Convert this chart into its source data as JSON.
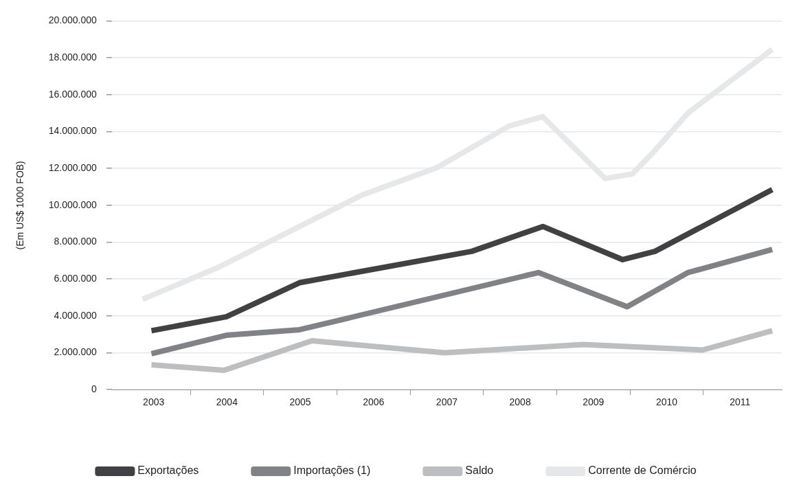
{
  "chart_data": {
    "type": "line",
    "ylabel": "(Em US$ 1000 FOB)",
    "xlim": [
      2002.43,
      2011.57
    ],
    "xticks": [
      {
        "value": 2003,
        "label": "2003"
      },
      {
        "value": 2004,
        "label": "2004"
      },
      {
        "value": 2005,
        "label": "2005"
      },
      {
        "value": 2006,
        "label": "2006"
      },
      {
        "value": 2007,
        "label": "2007"
      },
      {
        "value": 2008,
        "label": "2008"
      },
      {
        "value": 2009,
        "label": "2009"
      },
      {
        "value": 2010,
        "label": "2010"
      },
      {
        "value": 2011,
        "label": "2011"
      },
      {
        "value": 2003.5,
        "label": null
      },
      {
        "value": 2004.5,
        "label": null
      },
      {
        "value": 2005.5,
        "label": null
      },
      {
        "value": 2006.5,
        "label": null
      },
      {
        "value": 2007.5,
        "label": null
      },
      {
        "value": 2008.5,
        "label": null
      },
      {
        "value": 2009.5,
        "label": null
      },
      {
        "value": 2010.5,
        "label": null
      }
    ],
    "ylim": [
      0,
      20000000
    ],
    "yticks": [
      {
        "value": 0,
        "label": "0"
      },
      {
        "value": 2000000,
        "label": "2.000.000"
      },
      {
        "value": 4000000,
        "label": "4.000.000"
      },
      {
        "value": 6000000,
        "label": "6.000.000"
      },
      {
        "value": 8000000,
        "label": "8.000.000"
      },
      {
        "value": 10000000,
        "label": "10.000.000"
      },
      {
        "value": 12000000,
        "label": "12.000.000"
      },
      {
        "value": 14000000,
        "label": "14.000.000"
      },
      {
        "value": 16000000,
        "label": "16.000.000"
      },
      {
        "value": 18000000,
        "label": "18.000.000"
      },
      {
        "value": 20000000,
        "label": "20.000.000"
      }
    ],
    "grid": "y",
    "legend": "bottom",
    "marker": "none",
    "line_style": "solid",
    "series": [
      {
        "name": "Exportações",
        "color": "#414042",
        "x": [
          2002.97,
          2003.99,
          2004.99,
          2007.34,
          2008.31,
          2009.4,
          2009.84,
          2011.44
        ],
        "values": [
          3200000,
          3950000,
          5800000,
          7500000,
          8850000,
          7050000,
          7500000,
          10850000
        ]
      },
      {
        "name": "Importações (1)",
        "color": "#808285",
        "x": [
          2002.97,
          2003.99,
          2004.99,
          2008.25,
          2009.46,
          2010.29,
          2011.44
        ],
        "values": [
          1950000,
          2950000,
          3250000,
          6350000,
          4500000,
          6350000,
          7600000
        ]
      },
      {
        "name": "Saldo",
        "color": "#bcbec0",
        "x": [
          2002.97,
          2003.96,
          2005.16,
          2006.97,
          2008.86,
          2010.49,
          2011.44
        ],
        "values": [
          1350000,
          1050000,
          2650000,
          2000000,
          2450000,
          2150000,
          3200000
        ]
      },
      {
        "name": "Corrente de Comércio",
        "color": "#e6e7e8",
        "x": [
          2002.85,
          2003.89,
          2005.84,
          2006.87,
          2007.85,
          2008.31,
          2009.16,
          2009.53,
          2009.8,
          2010.29,
          2011.44
        ],
        "values": [
          4900000,
          6650000,
          10550000,
          12050000,
          14300000,
          14800000,
          11450000,
          11700000,
          12800000,
          15000000,
          18450000
        ]
      }
    ]
  }
}
